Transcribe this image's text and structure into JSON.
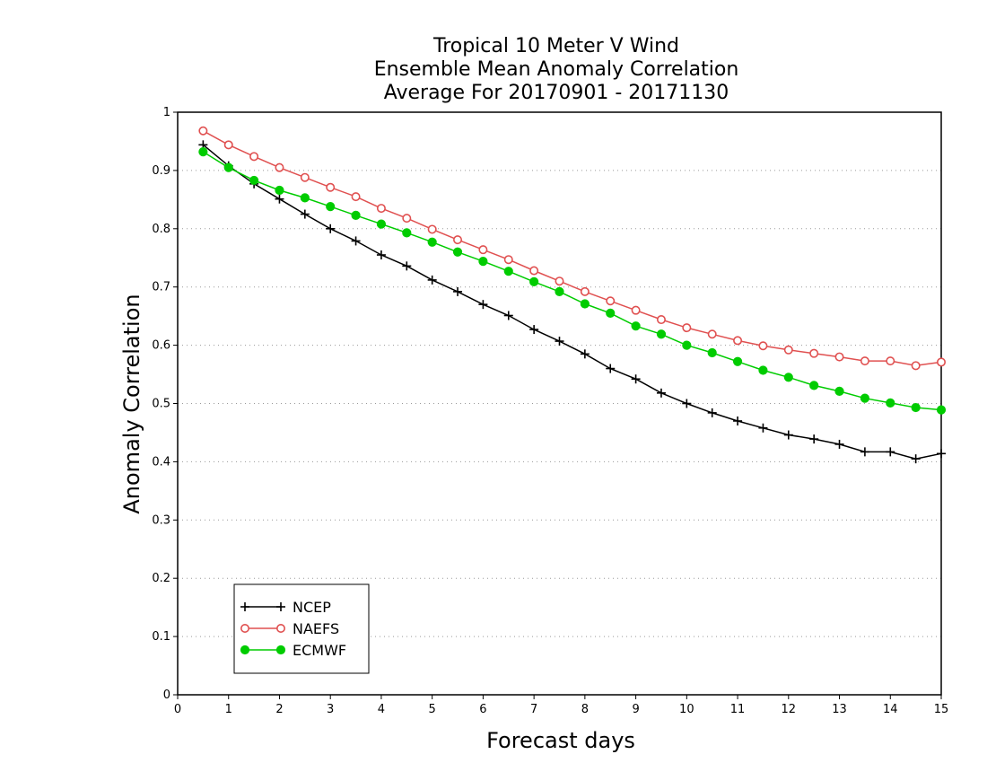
{
  "chart_data": {
    "type": "line",
    "title": [
      "Tropical 10 Meter V Wind",
      "Ensemble Mean Anomaly Correlation",
      "Average For 20170901 - 20171130"
    ],
    "xlabel": "Forecast days",
    "ylabel": "Anomaly Correlation",
    "xlim": [
      0,
      15
    ],
    "ylim": [
      0,
      1
    ],
    "xticks": [
      0,
      1,
      2,
      3,
      4,
      5,
      6,
      7,
      8,
      9,
      10,
      11,
      12,
      13,
      14,
      15
    ],
    "yticks": [
      0,
      0.1,
      0.2,
      0.3,
      0.4,
      0.5,
      0.6,
      0.7,
      0.8,
      0.9,
      1
    ],
    "ytick_labels": [
      "0",
      "0.1",
      "0.2",
      "0.3",
      "0.4",
      "0.5",
      "0.6",
      "0.7",
      "0.8",
      "0.9",
      "1"
    ],
    "grid": "horizontal dotted",
    "legend_position": "bottom-left",
    "x": [
      0.5,
      1,
      1.5,
      2,
      2.5,
      3,
      3.5,
      4,
      4.5,
      5,
      5.5,
      6,
      6.5,
      7,
      7.5,
      8,
      8.5,
      9,
      9.5,
      10,
      10.5,
      11,
      11.5,
      12,
      12.5,
      13,
      13.5,
      14,
      14.5,
      15
    ],
    "series": [
      {
        "name": "NCEP",
        "color": "#000000",
        "marker": "plus",
        "values": [
          0.944,
          0.908,
          0.877,
          0.851,
          0.825,
          0.8,
          0.779,
          0.755,
          0.736,
          0.712,
          0.692,
          0.67,
          0.651,
          0.627,
          0.607,
          0.585,
          0.56,
          0.542,
          0.518,
          0.5,
          0.484,
          0.47,
          0.458,
          0.446,
          0.439,
          0.43,
          0.417,
          0.417,
          0.405,
          0.414
        ]
      },
      {
        "name": "NAEFS",
        "color": "#e05050",
        "marker": "open-circle",
        "values": [
          0.968,
          0.944,
          0.924,
          0.905,
          0.888,
          0.871,
          0.855,
          0.835,
          0.818,
          0.799,
          0.781,
          0.764,
          0.747,
          0.728,
          0.71,
          0.692,
          0.676,
          0.66,
          0.644,
          0.63,
          0.619,
          0.608,
          0.599,
          0.592,
          0.586,
          0.58,
          0.573,
          0.573,
          0.565,
          0.571
        ]
      },
      {
        "name": "ECMWF",
        "color": "#00cc00",
        "marker": "filled-circle",
        "values": [
          0.932,
          0.905,
          0.883,
          0.866,
          0.853,
          0.838,
          0.823,
          0.808,
          0.793,
          0.777,
          0.76,
          0.744,
          0.727,
          0.709,
          0.692,
          0.671,
          0.655,
          0.633,
          0.619,
          0.6,
          0.587,
          0.572,
          0.557,
          0.545,
          0.531,
          0.521,
          0.509,
          0.501,
          0.493,
          0.489
        ]
      }
    ]
  }
}
